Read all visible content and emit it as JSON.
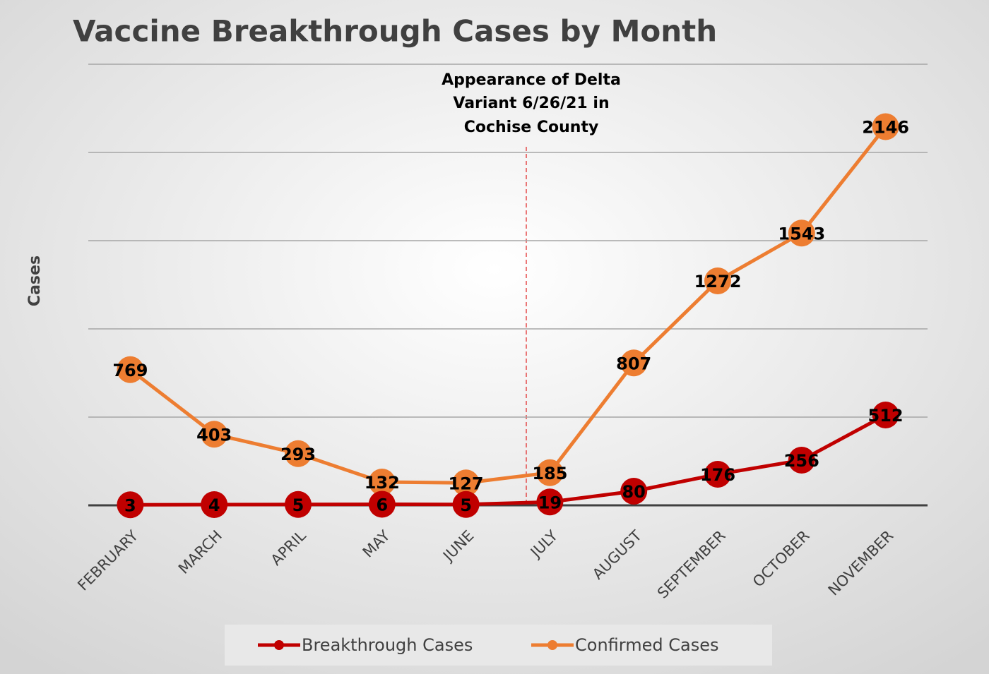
{
  "chart_data": {
    "type": "line",
    "title": "Vaccine Breakthrough Cases by Month",
    "y_label": "Cases",
    "annotation": [
      "Appearance of Delta",
      "Variant 6/26/21 in",
      "Cochise County"
    ],
    "categories": [
      "FEBRUARY",
      "MARCH",
      "APRIL",
      "MAY",
      "JUNE",
      "JULY",
      "AUGUST",
      "SEPTEMBER",
      "OCTOBER",
      "NOVEMBER"
    ],
    "series": [
      {
        "name": "Breakthrough Cases",
        "color": "#c00000",
        "values": [
          3,
          4,
          5,
          6,
          5,
          19,
          80,
          176,
          256,
          512
        ]
      },
      {
        "name": "Confirmed Cases",
        "color": "#ed7d31",
        "values": [
          769,
          403,
          293,
          132,
          127,
          185,
          807,
          1272,
          1543,
          2146
        ]
      }
    ],
    "ylim": [
      0,
      2500
    ],
    "yticks": [
      0,
      500,
      1000,
      1500,
      2000,
      2500
    ],
    "grid": true,
    "legend": "bottom"
  }
}
